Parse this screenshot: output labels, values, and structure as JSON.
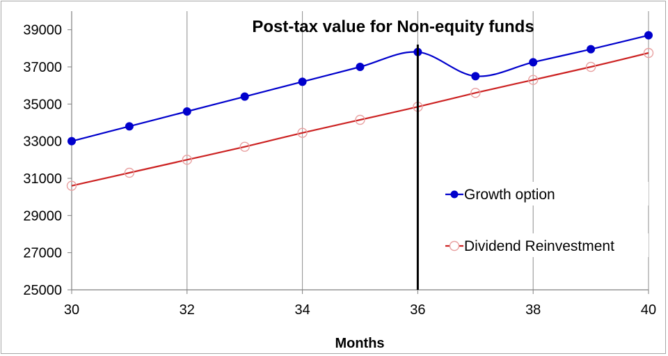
{
  "chart_data": {
    "type": "line",
    "title": "Post-tax value for Non-equity funds",
    "xlabel": "Months",
    "ylabel": "",
    "xlim": [
      30,
      40
    ],
    "ylim": [
      25000,
      40000
    ],
    "x_ticks": [
      "30",
      "32",
      "34",
      "36",
      "38",
      "40"
    ],
    "y_ticks": [
      "25000",
      "27000",
      "29000",
      "31000",
      "33000",
      "35000",
      "37000",
      "39000"
    ],
    "x": [
      30,
      31,
      32,
      33,
      34,
      35,
      36,
      37,
      38,
      39,
      40
    ],
    "series": [
      {
        "name": "Growth option",
        "color": "#0000cc",
        "marker": "filled-circle",
        "values": [
          33000,
          33800,
          34600,
          35400,
          36200,
          37000,
          37800,
          36500,
          37250,
          37950,
          38700
        ]
      },
      {
        "name": "Dividend Reinvestment",
        "color": "#cc2222",
        "marker": "open-circle",
        "values": [
          30600,
          31300,
          32000,
          32700,
          33450,
          34150,
          34850,
          35600,
          36300,
          37000,
          37750
        ]
      }
    ],
    "vertical_marker_x": 36,
    "grid": "vertical",
    "legend_position": "right"
  }
}
